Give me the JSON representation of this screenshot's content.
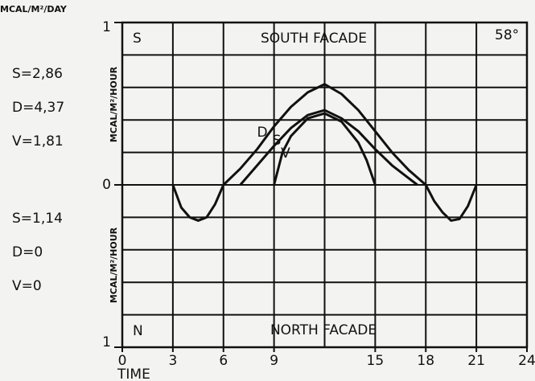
{
  "chart_data": {
    "type": "line",
    "unit_label": "MCAL/M²/DAY",
    "y_label_south": "MCAL/M²/HOUR",
    "y_label_north": "MCAL/M²/HOUR",
    "x_label": "TIME",
    "panel_south_letter": "S",
    "panel_south_title": "SOUTH FACADE",
    "panel_angle": "58°",
    "panel_north_letter": "N",
    "panel_north_title": "NORTH FACADE",
    "south_totals": [
      "S=2,86",
      "D=4,37",
      "V=1,81"
    ],
    "north_totals": [
      "S=1,14",
      "D=0",
      "V=0"
    ],
    "xlim": [
      0,
      24
    ],
    "xticks": [
      0,
      3,
      6,
      9,
      15,
      18,
      21,
      24
    ],
    "xgrid": [
      3,
      6,
      9,
      12,
      15,
      18,
      21
    ],
    "ylim": [
      -1,
      1
    ],
    "yticks": [
      {
        "value": 1,
        "label": "1"
      },
      0,
      {
        "value": -1,
        "label": "1"
      }
    ],
    "ygrid": [
      -0.8,
      -0.6,
      -0.4,
      -0.2,
      0,
      0.2,
      0.4,
      0.6,
      0.8
    ],
    "series": [
      {
        "name": "D",
        "color": "#111111",
        "x": [
          3,
          3.5,
          4,
          4.5,
          5,
          5.5,
          6,
          7,
          8,
          9,
          10,
          11,
          12,
          13,
          14,
          15,
          16,
          17,
          18,
          18.5,
          19,
          19.5,
          20,
          20.5,
          21
        ],
        "values": [
          0,
          -0.14,
          -0.2,
          -0.22,
          -0.2,
          -0.12,
          0,
          0.1,
          0.22,
          0.36,
          0.48,
          0.57,
          0.62,
          0.56,
          0.46,
          0.33,
          0.2,
          0.09,
          0,
          -0.1,
          -0.17,
          -0.22,
          -0.21,
          -0.13,
          0
        ]
      },
      {
        "name": "S",
        "color": "#111111",
        "x": [
          7,
          8,
          9,
          10,
          11,
          12,
          13,
          14,
          15,
          16,
          17,
          17.5
        ],
        "values": [
          0,
          0.12,
          0.24,
          0.35,
          0.43,
          0.46,
          0.41,
          0.33,
          0.22,
          0.12,
          0.04,
          0
        ]
      },
      {
        "name": "V",
        "color": "#111111",
        "x": [
          9,
          9.5,
          10,
          11,
          12,
          13,
          14,
          14.5,
          15
        ],
        "values": [
          0,
          0.2,
          0.3,
          0.41,
          0.44,
          0.39,
          0.26,
          0.15,
          0
        ]
      }
    ]
  }
}
